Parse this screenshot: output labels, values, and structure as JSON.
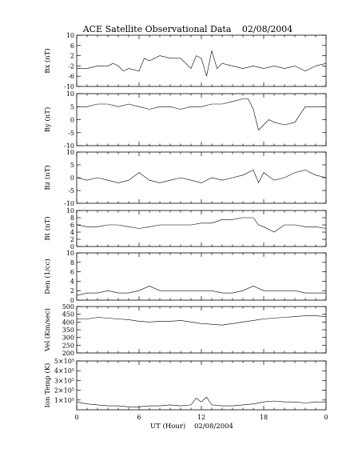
{
  "chart_data": {
    "type": "line",
    "title": "ACE Satellite Observational Data",
    "date": "02/08/2004",
    "xlabel": "UT (Hour)",
    "xlabel_date": "02/08/2004",
    "x_ticks": [
      "0",
      "6",
      "12",
      "18",
      "0"
    ],
    "xlim": [
      0,
      24
    ],
    "panels": [
      {
        "ylabel": "Bx (nT)",
        "ylim": [
          -10,
          10
        ],
        "y_ticks": [
          10,
          6,
          2,
          -2,
          -6,
          -10
        ],
        "y_tick_labels": [
          "10",
          "6",
          "2",
          "-2",
          "-6",
          "-10"
        ],
        "x": [
          0,
          1,
          2,
          3,
          3.5,
          4,
          4.5,
          5,
          6,
          6.5,
          7,
          8,
          9,
          10,
          11,
          11.5,
          12,
          12.5,
          13,
          13.5,
          14,
          15,
          16,
          17,
          18,
          19,
          20,
          21,
          22,
          23,
          24
        ],
        "values": [
          -3,
          -3,
          -2,
          -2,
          -1,
          -2,
          -4,
          -3,
          -4,
          1,
          0,
          2,
          1,
          1,
          -3,
          2,
          1,
          -6,
          4,
          -3,
          -1,
          -2,
          -3,
          -2,
          -3,
          -2,
          -3,
          -2,
          -4,
          -2,
          -1
        ]
      },
      {
        "ylabel": "By (nT)",
        "ylim": [
          -10,
          10
        ],
        "y_ticks": [
          10,
          5,
          0,
          -5,
          -10
        ],
        "y_tick_labels": [
          "10",
          "5",
          "0",
          "-5",
          "-10"
        ],
        "x": [
          0,
          1,
          2,
          3,
          4,
          5,
          6,
          7,
          8,
          9,
          10,
          11,
          12,
          13,
          14,
          15,
          16,
          16.5,
          17,
          17.5,
          18,
          18.5,
          19,
          20,
          21,
          22,
          23,
          24
        ],
        "values": [
          5,
          5,
          6,
          6,
          5,
          6,
          5,
          4,
          5,
          5,
          4,
          5,
          5,
          6,
          6,
          7,
          8,
          8,
          4,
          -4,
          -2,
          0,
          -1,
          -2,
          -1,
          5,
          5,
          5
        ]
      },
      {
        "ylabel": "Bz (nT)",
        "ylim": [
          -10,
          10
        ],
        "y_ticks": [
          10,
          5,
          0,
          -5,
          -10
        ],
        "y_tick_labels": [
          "10",
          "5",
          "0",
          "-5",
          "-10"
        ],
        "x": [
          0,
          1,
          2,
          3,
          4,
          5,
          6,
          7,
          8,
          9,
          10,
          11,
          12,
          13,
          14,
          15,
          16,
          17,
          17.5,
          18,
          19,
          20,
          21,
          22,
          23,
          24
        ],
        "values": [
          0,
          -1,
          0,
          -1,
          -2,
          -1,
          2,
          -1,
          -2,
          -1,
          0,
          -1,
          -2,
          0,
          -1,
          0,
          1,
          3,
          -2,
          2,
          -1,
          0,
          2,
          3,
          1,
          0
        ]
      },
      {
        "ylabel": "Bt (nT)",
        "ylim": [
          0,
          10
        ],
        "y_ticks": [
          10,
          8,
          6,
          4,
          2,
          0
        ],
        "y_tick_labels": [
          "10",
          "8",
          "6",
          "4",
          "2",
          "0"
        ],
        "x": [
          0,
          1,
          2,
          3,
          4,
          5,
          6,
          7,
          8,
          9,
          10,
          11,
          12,
          13,
          14,
          15,
          16,
          17,
          17.5,
          18,
          19,
          20,
          21,
          22,
          23,
          24
        ],
        "values": [
          6,
          5.5,
          5.5,
          6,
          6,
          5.5,
          5,
          5.5,
          6,
          6,
          6,
          6,
          6.5,
          6.5,
          7.5,
          7.5,
          8,
          8,
          6,
          5.5,
          4,
          6,
          6,
          5.5,
          5.5,
          5
        ]
      },
      {
        "ylabel": "Den (1/cc)",
        "ylim": [
          0,
          10
        ],
        "y_ticks": [
          10,
          8,
          6,
          4,
          2,
          0
        ],
        "y_tick_labels": [
          "10",
          "8",
          "6",
          "4",
          "2",
          "0"
        ],
        "x": [
          0,
          1,
          2,
          3,
          4,
          5,
          6,
          7,
          8,
          9,
          10,
          11,
          12,
          13,
          14,
          15,
          16,
          17,
          18,
          19,
          20,
          21,
          22,
          23,
          24
        ],
        "values": [
          1,
          1.5,
          1.5,
          2,
          1.5,
          1.5,
          2,
          3,
          2,
          2,
          2,
          2,
          2,
          2,
          1.5,
          1.5,
          2,
          3,
          2,
          2,
          2,
          2,
          1.5,
          1.5,
          1.5
        ]
      },
      {
        "ylabel": "Vel (Km/sec)",
        "ylim": [
          200,
          500
        ],
        "y_ticks": [
          500,
          450,
          400,
          350,
          300,
          250,
          200
        ],
        "y_tick_labels": [
          "500",
          "450",
          "400",
          "350",
          "300",
          "250",
          "200"
        ],
        "x": [
          0,
          1,
          2,
          3,
          4,
          5,
          6,
          7,
          8,
          9,
          10,
          11,
          12,
          13,
          14,
          15,
          16,
          17,
          18,
          19,
          20,
          21,
          22,
          23,
          24
        ],
        "values": [
          420,
          420,
          430,
          425,
          420,
          415,
          405,
          400,
          405,
          405,
          410,
          400,
          390,
          385,
          380,
          390,
          400,
          410,
          420,
          425,
          430,
          435,
          440,
          440,
          435
        ]
      },
      {
        "ylabel": "Ion Temp (K)",
        "ylim": [
          0,
          5
        ],
        "y_scale_exp": 5,
        "y_ticks": [
          5,
          4,
          3,
          2,
          1
        ],
        "y_tick_labels": [
          "5×10⁵",
          "4×10⁵",
          "3×10⁵",
          "2×10⁵",
          "1×10⁵"
        ],
        "x": [
          0,
          1,
          2,
          3,
          4,
          5,
          6,
          7,
          8,
          9,
          10,
          11,
          11.5,
          12,
          12.5,
          13,
          14,
          15,
          16,
          17,
          18,
          19,
          20,
          21,
          22,
          23,
          24
        ],
        "values": [
          0.8,
          0.6,
          0.5,
          0.4,
          0.4,
          0.3,
          0.3,
          0.4,
          0.4,
          0.5,
          0.4,
          0.5,
          1.2,
          0.8,
          1.3,
          0.5,
          0.4,
          0.4,
          0.5,
          0.6,
          0.8,
          0.9,
          0.8,
          0.8,
          0.7,
          0.8,
          0.8
        ]
      }
    ]
  }
}
